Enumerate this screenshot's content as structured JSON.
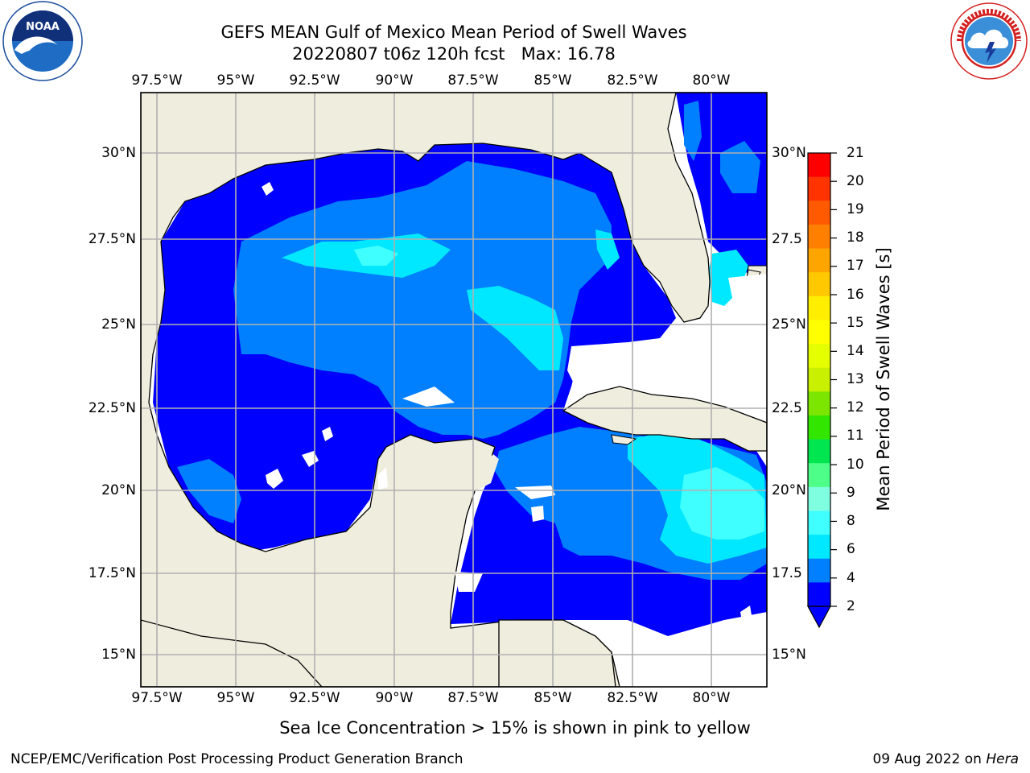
{
  "title": {
    "line1": "GEFS MEAN Gulf of Mexico Mean Period of Swell Waves",
    "line2": "20220807 t06z 120h fcst   Max: 16.78"
  },
  "logos": {
    "left": {
      "icon": "noaa-logo-icon",
      "text": "NOAA",
      "ring_text": "NATIONAL OCEANIC AND ATMOSPHERIC ADMINISTRATION · U.S. DEPARTMENT OF COMMERCE"
    },
    "right": {
      "icon": "nws-logo-icon",
      "ring_text": "NATIONAL WEATHER SERVICE"
    }
  },
  "map": {
    "lon_ticks": [
      "97.5°W",
      "95°W",
      "92.5°W",
      "90°W",
      "87.5°W",
      "85°W",
      "82.5°W",
      "80°W"
    ],
    "lat_ticks": [
      "30°N",
      "27.5°N",
      "25°N",
      "22.5°N",
      "20°N",
      "17.5°N",
      "15°N"
    ],
    "right_lat_ticks": [
      "30°N",
      "27.5",
      "25°N",
      "22.5",
      "20°N",
      "17.5",
      "15°N"
    ],
    "ocean_no_data_color": "#ffffff",
    "land_color": "#efedde",
    "grid_color": "#b0b0b0"
  },
  "colorbar": {
    "label": "Mean Period of Swell Waves [s]",
    "ticks": [
      "21",
      "20",
      "19",
      "18",
      "17",
      "16",
      "15",
      "14",
      "13",
      "12",
      "11",
      "10",
      "9",
      "8",
      "6",
      "4",
      "2"
    ],
    "colors": [
      "#ff0000",
      "#ff3300",
      "#ff5a00",
      "#ff8000",
      "#ffa500",
      "#ffc800",
      "#ffee00",
      "#ffff00",
      "#e6ff00",
      "#c8f000",
      "#7ce600",
      "#32e600",
      "#00e650",
      "#4dff88",
      "#80ffe0",
      "#40ffff",
      "#00e8ff",
      "#007fff",
      "#0000ff"
    ],
    "under_color": "#0000ff"
  },
  "caption": "Sea Ice Concentration > 15% is shown in pink to yellow",
  "footer": {
    "left": "NCEP/EMC/Verification Post Processing Product Generation Branch",
    "right_date": "09 Aug 2022 on ",
    "right_host": "Hera"
  }
}
